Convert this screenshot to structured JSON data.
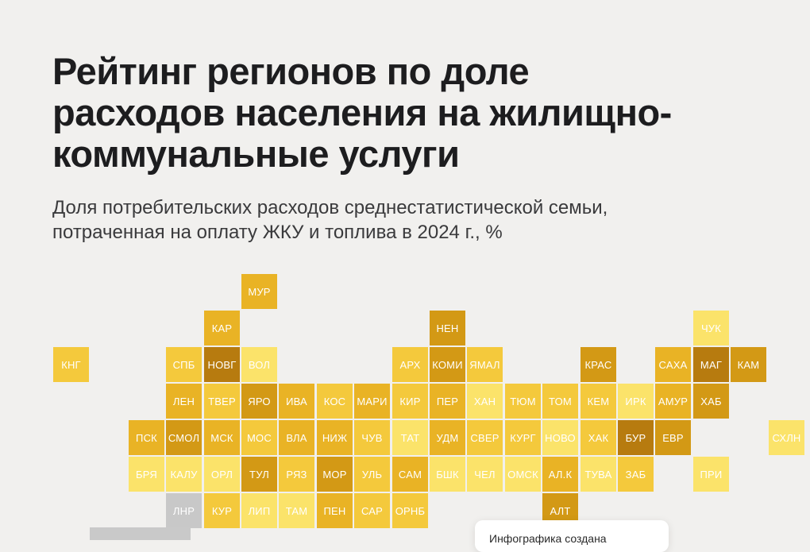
{
  "title_lines": [
    "Рейтинг регионов по доле",
    "расходов населения на жилищно-",
    "коммунальные услуги"
  ],
  "subtitle_lines": [
    "Доля потребительских расходов среднестатистической семьи,",
    "потраченная на оплату ЖКУ и топлива в 2024 г., %"
  ],
  "footer_note": "Инфографика создана",
  "colors": {
    "background": "#f1f0ee",
    "no_data": "#c8c8c8",
    "scale": [
      "#fbe36a",
      "#f4c93c",
      "#e9b325",
      "#d39915",
      "#b77b0f"
    ]
  },
  "regions": [
    {
      "label": "МУР",
      "row": 0,
      "col": 5,
      "level": 3
    },
    {
      "label": "КАР",
      "row": 1,
      "col": 4,
      "level": 3
    },
    {
      "label": "НЕН",
      "row": 1,
      "col": 10,
      "level": 4
    },
    {
      "label": "ЧУК",
      "row": 1,
      "col": 17,
      "level": 1
    },
    {
      "label": "КНГ",
      "row": 2,
      "col": 0,
      "level": 2
    },
    {
      "label": "СПБ",
      "row": 2,
      "col": 3,
      "level": 2
    },
    {
      "label": "НОВГ",
      "row": 2,
      "col": 4,
      "level": 5
    },
    {
      "label": "ВОЛ",
      "row": 2,
      "col": 5,
      "level": 1
    },
    {
      "label": "АРХ",
      "row": 2,
      "col": 9,
      "level": 2
    },
    {
      "label": "КОМИ",
      "row": 2,
      "col": 10,
      "level": 4
    },
    {
      "label": "ЯМАЛ",
      "row": 2,
      "col": 11,
      "level": 2
    },
    {
      "label": "КРАС",
      "row": 2,
      "col": 14,
      "level": 4
    },
    {
      "label": "САХА",
      "row": 2,
      "col": 16,
      "level": 3
    },
    {
      "label": "МАГ",
      "row": 2,
      "col": 17,
      "level": 5
    },
    {
      "label": "КАМ",
      "row": 2,
      "col": 18,
      "level": 4
    },
    {
      "label": "ЛЕН",
      "row": 3,
      "col": 3,
      "level": 3
    },
    {
      "label": "ТВЕР",
      "row": 3,
      "col": 4,
      "level": 2
    },
    {
      "label": "ЯРО",
      "row": 3,
      "col": 5,
      "level": 4
    },
    {
      "label": "ИВА",
      "row": 3,
      "col": 6,
      "level": 3
    },
    {
      "label": "КОС",
      "row": 3,
      "col": 7,
      "level": 2
    },
    {
      "label": "МАРИ",
      "row": 3,
      "col": 8,
      "level": 3
    },
    {
      "label": "КИР",
      "row": 3,
      "col": 9,
      "level": 2
    },
    {
      "label": "ПЕР",
      "row": 3,
      "col": 10,
      "level": 3
    },
    {
      "label": "ХАН",
      "row": 3,
      "col": 11,
      "level": 1
    },
    {
      "label": "ТЮМ",
      "row": 3,
      "col": 12,
      "level": 2
    },
    {
      "label": "ТОМ",
      "row": 3,
      "col": 13,
      "level": 2
    },
    {
      "label": "КЕМ",
      "row": 3,
      "col": 14,
      "level": 2
    },
    {
      "label": "ИРК",
      "row": 3,
      "col": 15,
      "level": 1
    },
    {
      "label": "АМУР",
      "row": 3,
      "col": 16,
      "level": 3
    },
    {
      "label": "ХАБ",
      "row": 3,
      "col": 17,
      "level": 4
    },
    {
      "label": "ПСК",
      "row": 4,
      "col": 2,
      "level": 3
    },
    {
      "label": "СМОЛ",
      "row": 4,
      "col": 3,
      "level": 4
    },
    {
      "label": "МСК",
      "row": 4,
      "col": 4,
      "level": 3
    },
    {
      "label": "МОС",
      "row": 4,
      "col": 5,
      "level": 2
    },
    {
      "label": "ВЛА",
      "row": 4,
      "col": 6,
      "level": 3
    },
    {
      "label": "НИЖ",
      "row": 4,
      "col": 7,
      "level": 3
    },
    {
      "label": "ЧУВ",
      "row": 4,
      "col": 8,
      "level": 2
    },
    {
      "label": "ТАТ",
      "row": 4,
      "col": 9,
      "level": 1
    },
    {
      "label": "УДМ",
      "row": 4,
      "col": 10,
      "level": 3
    },
    {
      "label": "СВЕР",
      "row": 4,
      "col": 11,
      "level": 2
    },
    {
      "label": "КУРГ",
      "row": 4,
      "col": 12,
      "level": 2
    },
    {
      "label": "НОВО",
      "row": 4,
      "col": 13,
      "level": 1
    },
    {
      "label": "ХАК",
      "row": 4,
      "col": 14,
      "level": 2
    },
    {
      "label": "БУР",
      "row": 4,
      "col": 15,
      "level": 5
    },
    {
      "label": "ЕВР",
      "row": 4,
      "col": 16,
      "level": 4
    },
    {
      "label": "СХЛН",
      "row": 4,
      "col": 19,
      "level": 1
    },
    {
      "label": "БРЯ",
      "row": 5,
      "col": 2,
      "level": 1
    },
    {
      "label": "КАЛУ",
      "row": 5,
      "col": 3,
      "level": 1
    },
    {
      "label": "ОРЛ",
      "row": 5,
      "col": 4,
      "level": 1
    },
    {
      "label": "ТУЛ",
      "row": 5,
      "col": 5,
      "level": 4
    },
    {
      "label": "РЯЗ",
      "row": 5,
      "col": 6,
      "level": 2
    },
    {
      "label": "МОР",
      "row": 5,
      "col": 7,
      "level": 4
    },
    {
      "label": "УЛЬ",
      "row": 5,
      "col": 8,
      "level": 2
    },
    {
      "label": "САМ",
      "row": 5,
      "col": 9,
      "level": 3
    },
    {
      "label": "БШК",
      "row": 5,
      "col": 10,
      "level": 1
    },
    {
      "label": "ЧЕЛ",
      "row": 5,
      "col": 11,
      "level": 1
    },
    {
      "label": "ОМСК",
      "row": 5,
      "col": 12,
      "level": 1
    },
    {
      "label": "АЛ.К",
      "row": 5,
      "col": 13,
      "level": 3
    },
    {
      "label": "ТУВА",
      "row": 5,
      "col": 14,
      "level": 1
    },
    {
      "label": "ЗАБ",
      "row": 5,
      "col": 15,
      "level": 2
    },
    {
      "label": "ПРИ",
      "row": 5,
      "col": 17,
      "level": 1
    },
    {
      "label": "ЛНР",
      "row": 6,
      "col": 3,
      "level": 0
    },
    {
      "label": "КУР",
      "row": 6,
      "col": 4,
      "level": 2
    },
    {
      "label": "ЛИП",
      "row": 6,
      "col": 5,
      "level": 1
    },
    {
      "label": "ТАМ",
      "row": 6,
      "col": 6,
      "level": 1
    },
    {
      "label": "ПЕН",
      "row": 6,
      "col": 7,
      "level": 3
    },
    {
      "label": "САР",
      "row": 6,
      "col": 8,
      "level": 2
    },
    {
      "label": "ОРНБ",
      "row": 6,
      "col": 9,
      "level": 2
    },
    {
      "label": "АЛТ",
      "row": 6,
      "col": 13,
      "level": 4
    }
  ]
}
